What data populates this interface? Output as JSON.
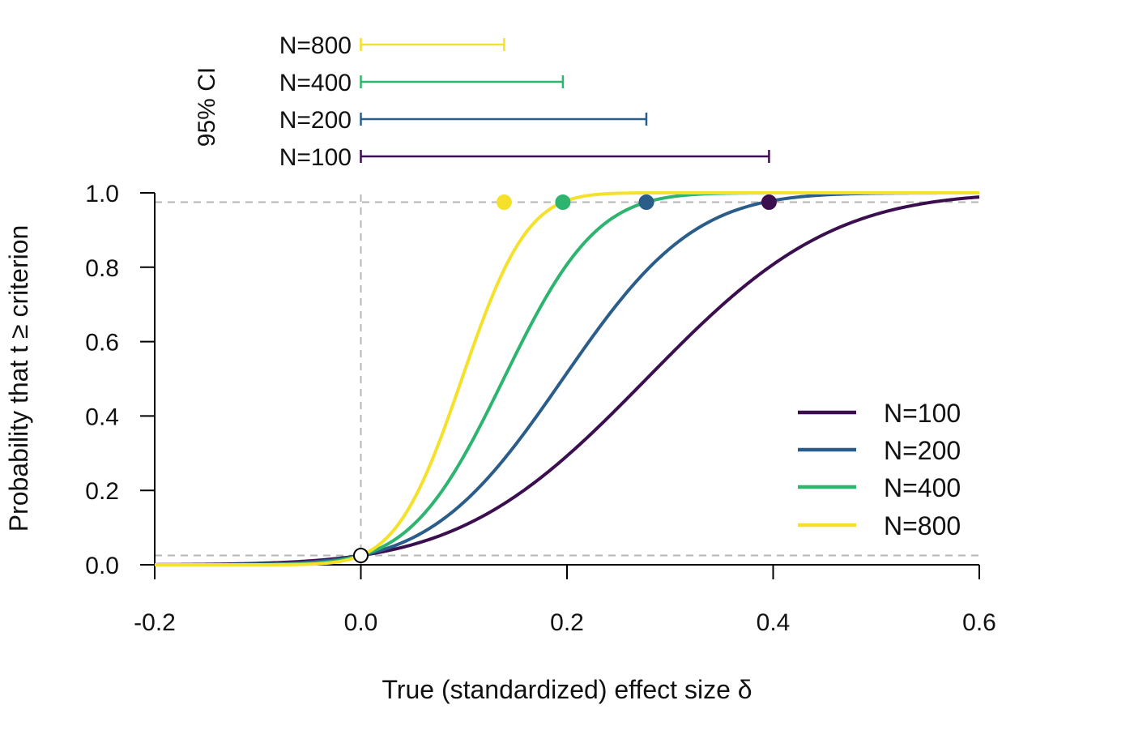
{
  "chart_data": {
    "type": "line",
    "title": "",
    "xlabel": "True (standardized) effect size δ",
    "ylabel": "Probability that t ≥ criterion",
    "xlim": [
      -0.2,
      0.6
    ],
    "ylim": [
      0.0,
      1.0
    ],
    "x_ticks": [
      -0.2,
      0.0,
      0.2,
      0.4,
      0.6
    ],
    "x_tick_labels": [
      "-0.2",
      "0.0",
      "0.2",
      "0.4",
      "0.6"
    ],
    "y_ticks": [
      0.0,
      0.2,
      0.4,
      0.6,
      0.8,
      1.0
    ],
    "y_tick_labels": [
      "0.0",
      "0.2",
      "0.4",
      "0.6",
      "0.8",
      "1.0"
    ],
    "grid": false,
    "legend_position": "bottom-right",
    "reference_lines": {
      "horizontal": [
        0.025,
        0.975
      ],
      "vertical": [
        0.0
      ]
    },
    "origin_marker": {
      "x": 0.0,
      "y": 0.025,
      "style": "open circle"
    },
    "series": [
      {
        "name": "N=100",
        "color": "#3b0f4f",
        "se": 0.1414,
        "marker": {
          "x": 0.396,
          "y": 0.975
        }
      },
      {
        "name": "N=200",
        "color": "#2a5d8a",
        "se": 0.1,
        "marker": {
          "x": 0.277,
          "y": 0.975
        }
      },
      {
        "name": "N=400",
        "color": "#2db46e",
        "se": 0.0707,
        "marker": {
          "x": 0.196,
          "y": 0.975
        }
      },
      {
        "name": "N=800",
        "color": "#f5e12a",
        "se": 0.05,
        "marker": {
          "x": 0.139,
          "y": 0.975
        }
      }
    ],
    "ci_panel": {
      "label": "95% CI",
      "intervals": [
        {
          "name": "N=800",
          "low": 0.0,
          "high": 0.139,
          "color": "#f5e12a"
        },
        {
          "name": "N=400",
          "low": 0.0,
          "high": 0.196,
          "color": "#2db46e"
        },
        {
          "name": "N=200",
          "low": 0.0,
          "high": 0.277,
          "color": "#2a5d8a"
        },
        {
          "name": "N=100",
          "low": 0.0,
          "high": 0.396,
          "color": "#3b0f4f"
        }
      ]
    }
  }
}
